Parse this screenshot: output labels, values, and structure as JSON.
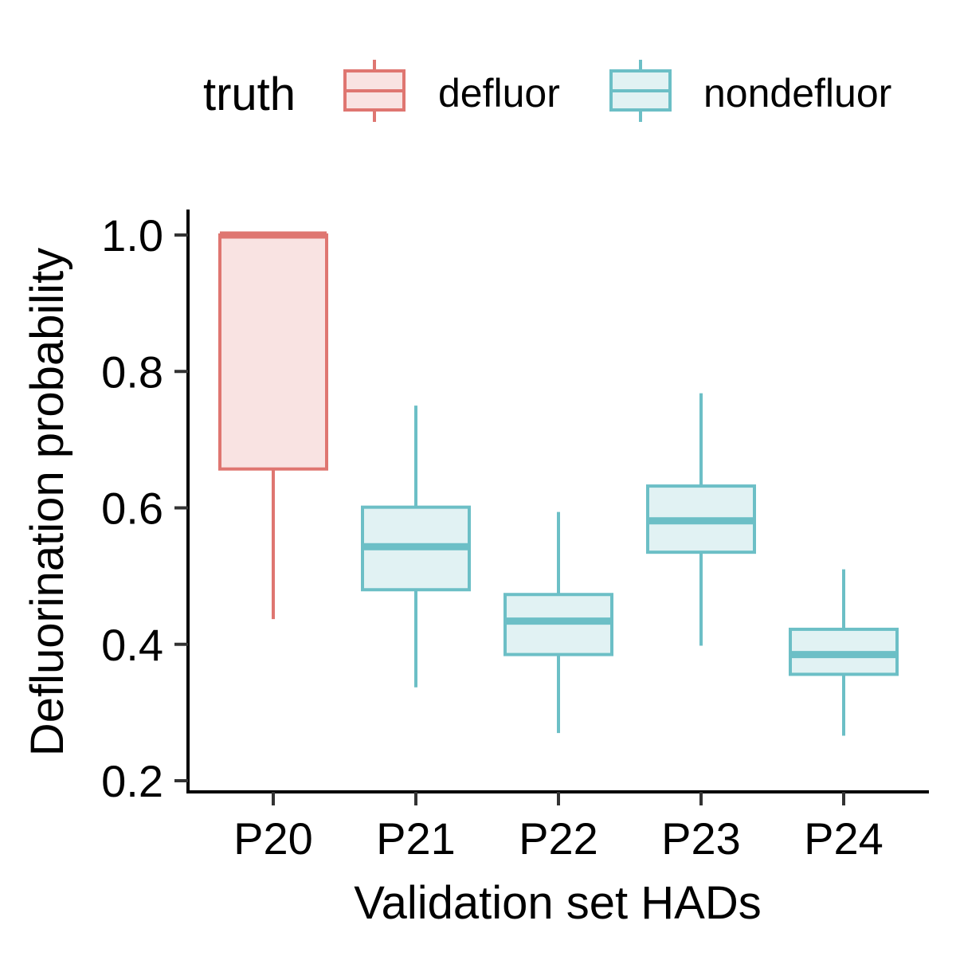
{
  "colors": {
    "defluor": "#DF7671",
    "defluor_fill": "#F9E3E2",
    "nondefluor": "#6CBFC6",
    "nondefluor_fill": "#E1F2F3",
    "axis": "#000000"
  },
  "legend": {
    "title": "truth",
    "position": "top",
    "entries": [
      {
        "name": "defluor",
        "color_key": "defluor"
      },
      {
        "name": "nondefluor",
        "color_key": "nondefluor"
      }
    ]
  },
  "chart_data": {
    "type": "boxplot",
    "xlabel": "Validation set HADs",
    "ylabel": "Defluorination probability",
    "categories": [
      "P20",
      "P21",
      "P22",
      "P23",
      "P24"
    ],
    "ylim": [
      0.19,
      1.035
    ],
    "yticks": [
      0.2,
      0.4,
      0.6,
      0.8,
      1.0
    ],
    "ytick_labels": [
      "0.2",
      "0.4",
      "0.6",
      "0.8",
      "1.0"
    ],
    "grid": false,
    "boxes": [
      {
        "category": "P20",
        "group": "defluor",
        "min": 0.437,
        "q1": 0.657,
        "median": 1.0,
        "q3": 1.0,
        "max": 1.0
      },
      {
        "category": "P21",
        "group": "nondefluor",
        "min": 0.337,
        "q1": 0.48,
        "median": 0.543,
        "q3": 0.601,
        "max": 0.75
      },
      {
        "category": "P22",
        "group": "nondefluor",
        "min": 0.27,
        "q1": 0.385,
        "median": 0.434,
        "q3": 0.473,
        "max": 0.594
      },
      {
        "category": "P23",
        "group": "nondefluor",
        "min": 0.398,
        "q1": 0.535,
        "median": 0.581,
        "q3": 0.632,
        "max": 0.768
      },
      {
        "category": "P24",
        "group": "nondefluor",
        "min": 0.266,
        "q1": 0.356,
        "median": 0.385,
        "q3": 0.422,
        "max": 0.51
      }
    ]
  }
}
